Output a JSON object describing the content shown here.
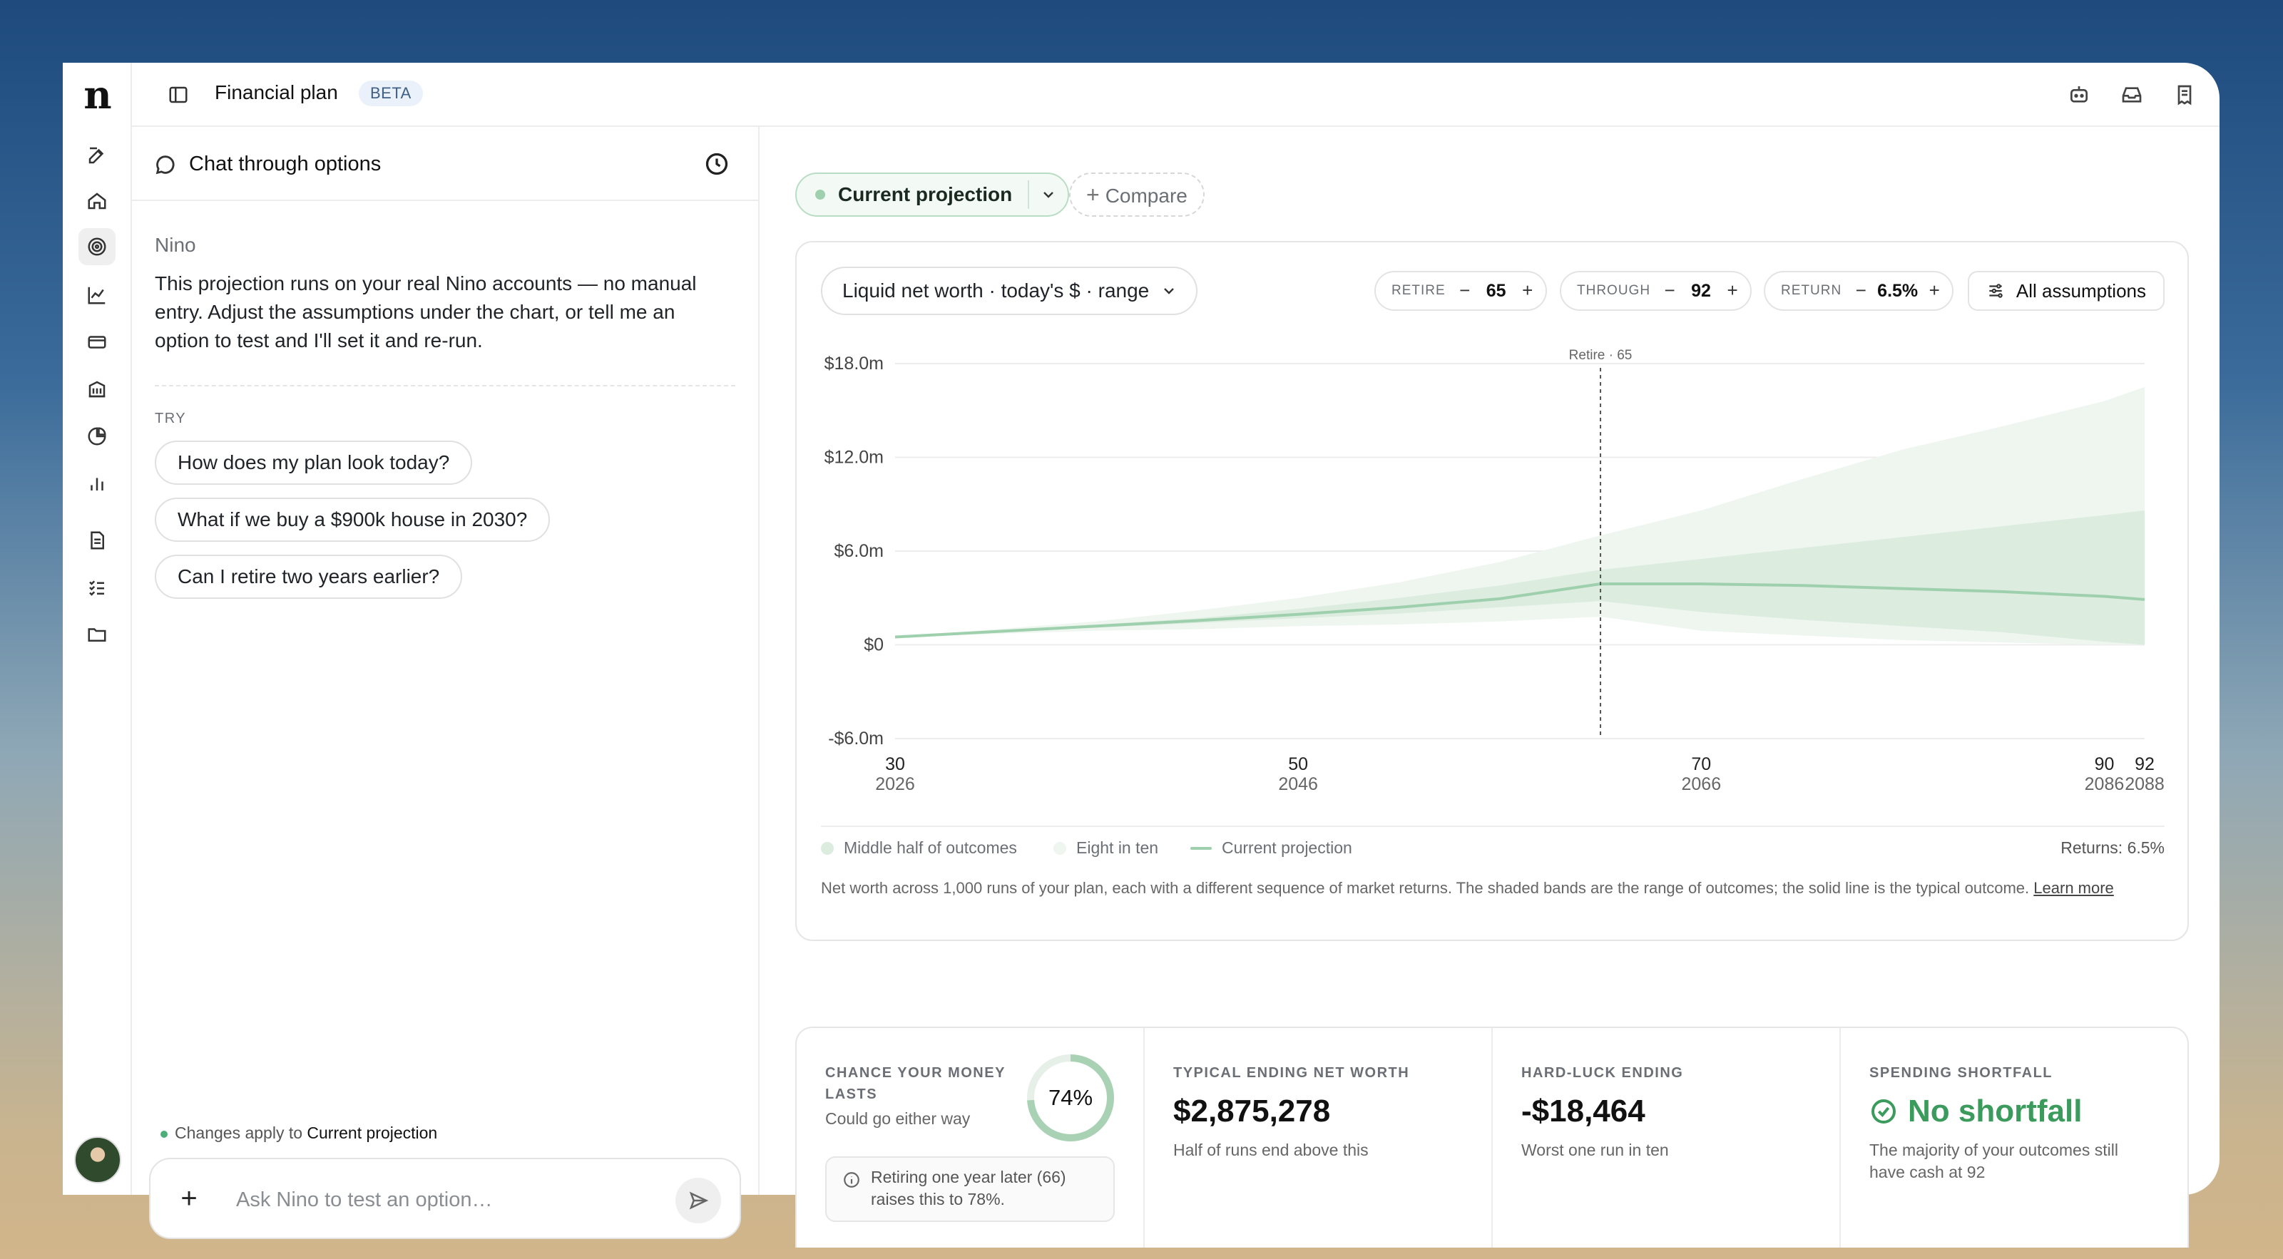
{
  "app": {
    "logo": "n",
    "title": "Financial plan",
    "badge": "BETA"
  },
  "rail": {
    "icons": [
      "compose-icon",
      "home-icon",
      "target-icon",
      "trend-chart-icon",
      "credit-card-icon",
      "building-icon",
      "pie-chart-icon",
      "bar-chart-icon",
      "document-icon",
      "checklist-icon",
      "folder-icon"
    ],
    "active": "target-icon"
  },
  "chat": {
    "header": "Chat through options",
    "sender": "Nino",
    "message": "This projection runs on your real Nino accounts — no manual entry. Adjust the assumptions under the chart, or tell me an option to test and I'll set it and re-run.",
    "try_label": "TRY",
    "suggestions": [
      "How does my plan look today?",
      "What if we buy a $900k house in 2030?",
      "Can I retire two years earlier?"
    ],
    "applies_prefix": "Changes apply to",
    "applies_target": "Current projection",
    "input_placeholder": "Ask Nino to test an option…"
  },
  "scenario": {
    "current": "Current projection",
    "compare": "Compare"
  },
  "controls": {
    "metric": "Liquid net worth · today's $ · range",
    "retire": {
      "label": "RETIRE",
      "value": "65"
    },
    "through": {
      "label": "THROUGH",
      "value": "92"
    },
    "return": {
      "label": "RETURN",
      "value": "6.5%"
    },
    "all": "All assumptions"
  },
  "legend": {
    "middle": "Middle half of outcomes",
    "eight": "Eight in ten",
    "line": "Current projection",
    "returns": "Returns: 6.5%"
  },
  "footnote": "Net worth across 1,000 runs of your plan, each with a different sequence of market returns. The shaded bands are the range of outcomes; the solid line is the typical outcome.",
  "learn_more": "Learn more",
  "chart_data": {
    "type": "area",
    "ylabel": "",
    "ylim": [
      -6.0,
      18.0
    ],
    "yticks": [
      -6.0,
      0,
      6.0,
      12.0,
      18.0
    ],
    "ytick_labels": [
      "-$6.0m",
      "$0",
      "$6.0m",
      "$12.0m",
      "$18.0m"
    ],
    "xlim": [
      30,
      92
    ],
    "xticks": [
      {
        "age": "30",
        "year": "2026",
        "x": 30
      },
      {
        "age": "50",
        "year": "2046",
        "x": 50
      },
      {
        "age": "70",
        "year": "2066",
        "x": 70
      },
      {
        "age": "90",
        "year": "2086",
        "x": 90
      },
      {
        "age": "92",
        "year": "2088",
        "x": 92
      }
    ],
    "annotation": {
      "x": 65,
      "label": "Retire · 65"
    },
    "x": [
      30,
      35,
      40,
      45,
      50,
      55,
      60,
      65,
      70,
      75,
      80,
      85,
      90,
      92
    ],
    "series": [
      {
        "name": "Eight in ten",
        "lower": [
          0.5,
          0.7,
          0.9,
          1.0,
          1.2,
          1.3,
          1.5,
          1.8,
          0.9,
          0.6,
          0.3,
          0.15,
          0.0,
          0.0
        ],
        "upper": [
          0.5,
          1.0,
          1.5,
          2.2,
          3.0,
          4.0,
          5.3,
          7.0,
          8.6,
          10.6,
          12.5,
          14.0,
          15.6,
          16.5
        ]
      },
      {
        "name": "Middle half of outcomes",
        "lower": [
          0.5,
          0.8,
          1.1,
          1.4,
          1.7,
          2.0,
          2.4,
          2.8,
          2.1,
          1.6,
          1.2,
          0.8,
          0.2,
          0.0
        ],
        "upper": [
          0.5,
          0.9,
          1.3,
          1.7,
          2.3,
          3.0,
          3.8,
          4.8,
          5.5,
          6.2,
          6.9,
          7.6,
          8.3,
          8.6
        ]
      },
      {
        "name": "Current projection",
        "values": [
          0.5,
          0.85,
          1.2,
          1.55,
          1.95,
          2.4,
          2.95,
          3.9,
          3.9,
          3.8,
          3.6,
          3.4,
          3.1,
          2.9
        ]
      }
    ]
  },
  "stats": {
    "chance": {
      "label": "CHANCE YOUR MONEY LASTS",
      "value": "74%",
      "fraction": 0.74,
      "sub": "Could go either way",
      "tip": "Retiring one year later (66) raises this to 78%."
    },
    "typical": {
      "label": "TYPICAL ENDING NET WORTH",
      "value": "$2,875,278",
      "sub": "Half of runs end above this"
    },
    "hardluck": {
      "label": "HARD-LUCK ENDING",
      "value": "-$18,464",
      "sub": "Worst one run in ten"
    },
    "shortfall": {
      "label": "SPENDING SHORTFALL",
      "value": "No shortfall",
      "sub": "The majority of your outcomes still have cash at 92"
    }
  },
  "colors": {
    "accent_green": "#3b9b5c",
    "band_light": "#eef6ef",
    "band_mid": "#dcecdf",
    "line": "#9ed0ae",
    "beta_bg": "#eaf1fb"
  }
}
